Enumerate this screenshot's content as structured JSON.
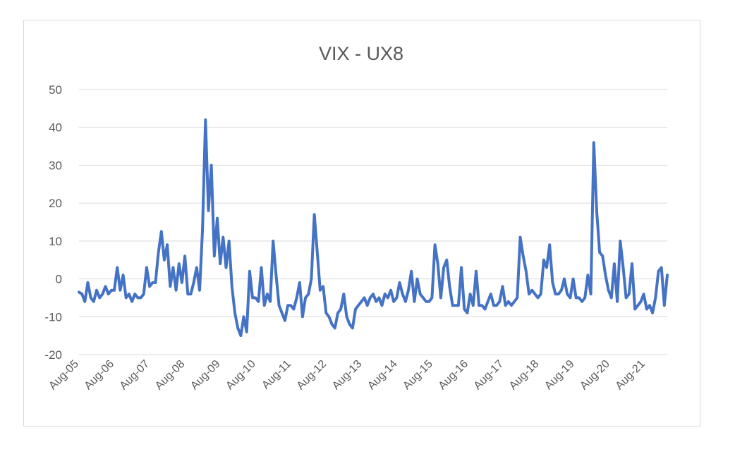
{
  "chart_data": {
    "type": "line",
    "title": "VIX - UX8",
    "xlabel": "",
    "ylabel": "",
    "ylim": [
      -20,
      50
    ],
    "yticks": [
      -20,
      -10,
      0,
      10,
      20,
      30,
      40,
      50
    ],
    "grid": true,
    "legend": "none",
    "line_color": "#4472c4",
    "x_tick_labels": [
      "Aug-05",
      "Aug-06",
      "Aug-07",
      "Aug-08",
      "Aug-09",
      "Aug-10",
      "Aug-11",
      "Aug-12",
      "Aug-13",
      "Aug-14",
      "Aug-15",
      "Aug-16",
      "Aug-17",
      "Aug-18",
      "Aug-19",
      "Aug-20",
      "Aug-21"
    ],
    "x_start": "2005-08",
    "x_end": "2022-04",
    "series": [
      {
        "points": [
          [
            "2005-08",
            -3.5
          ],
          [
            "2005-09",
            -4
          ],
          [
            "2005-10",
            -6
          ],
          [
            "2005-11",
            -1
          ],
          [
            "2005-12",
            -5
          ],
          [
            "2006-01",
            -6
          ],
          [
            "2006-02",
            -3
          ],
          [
            "2006-03",
            -5
          ],
          [
            "2006-04",
            -4
          ],
          [
            "2006-05",
            -2
          ],
          [
            "2006-06",
            -4
          ],
          [
            "2006-07",
            -3
          ],
          [
            "2006-08",
            -3
          ],
          [
            "2006-09",
            3
          ],
          [
            "2006-10",
            -3
          ],
          [
            "2006-11",
            1
          ],
          [
            "2006-12",
            -5
          ],
          [
            "2007-01",
            -4
          ],
          [
            "2007-02",
            -6
          ],
          [
            "2007-03",
            -4
          ],
          [
            "2007-04",
            -5
          ],
          [
            "2007-05",
            -5
          ],
          [
            "2007-06",
            -4
          ],
          [
            "2007-07",
            3
          ],
          [
            "2007-08",
            -2
          ],
          [
            "2007-09",
            -1
          ],
          [
            "2007-10",
            -1
          ],
          [
            "2007-11",
            7
          ],
          [
            "2007-12",
            12.5
          ],
          [
            "2008-01",
            5
          ],
          [
            "2008-02",
            9
          ],
          [
            "2008-03",
            -2
          ],
          [
            "2008-04",
            3
          ],
          [
            "2008-05",
            -3
          ],
          [
            "2008-06",
            4
          ],
          [
            "2008-07",
            -1
          ],
          [
            "2008-08",
            6
          ],
          [
            "2008-09",
            -4
          ],
          [
            "2008-10",
            -4
          ],
          [
            "2008-11",
            -1
          ],
          [
            "2008-12",
            3
          ],
          [
            "2009-01",
            -3
          ],
          [
            "2009-02",
            13
          ],
          [
            "2009-03",
            42
          ],
          [
            "2009-04",
            18
          ],
          [
            "2009-05",
            30
          ],
          [
            "2009-06",
            6
          ],
          [
            "2009-07",
            16
          ],
          [
            "2009-08",
            4
          ],
          [
            "2009-09",
            11
          ],
          [
            "2009-10",
            3
          ],
          [
            "2009-11",
            10
          ],
          [
            "2009-12",
            -2
          ],
          [
            "2010-01",
            -9
          ],
          [
            "2010-02",
            -13
          ],
          [
            "2010-03",
            -15
          ],
          [
            "2010-04",
            -10
          ],
          [
            "2010-05",
            -14
          ],
          [
            "2010-06",
            2
          ],
          [
            "2010-07",
            -5
          ],
          [
            "2010-08",
            -5
          ],
          [
            "2010-09",
            -6
          ],
          [
            "2010-10",
            3
          ],
          [
            "2010-11",
            -7
          ],
          [
            "2010-12",
            -4
          ],
          [
            "2011-01",
            -6
          ],
          [
            "2011-02",
            10
          ],
          [
            "2011-03",
            1
          ],
          [
            "2011-04",
            -7
          ],
          [
            "2011-05",
            -9
          ],
          [
            "2011-06",
            -11
          ],
          [
            "2011-07",
            -7
          ],
          [
            "2011-08",
            -7
          ],
          [
            "2011-09",
            -8
          ],
          [
            "2011-10",
            -5
          ],
          [
            "2011-11",
            -1
          ],
          [
            "2011-12",
            -10
          ],
          [
            "2012-01",
            -5
          ],
          [
            "2012-02",
            -4
          ],
          [
            "2012-03",
            0
          ],
          [
            "2012-04",
            17
          ],
          [
            "2012-05",
            7
          ],
          [
            "2012-06",
            -3
          ],
          [
            "2012-07",
            -2
          ],
          [
            "2012-08",
            -9
          ],
          [
            "2012-09",
            -10
          ],
          [
            "2012-10",
            -12
          ],
          [
            "2012-11",
            -13
          ],
          [
            "2012-12",
            -9
          ],
          [
            "2013-01",
            -8
          ],
          [
            "2013-02",
            -4
          ],
          [
            "2013-03",
            -10
          ],
          [
            "2013-04",
            -12
          ],
          [
            "2013-05",
            -13
          ],
          [
            "2013-06",
            -8
          ],
          [
            "2013-07",
            -7
          ],
          [
            "2013-08",
            -6
          ],
          [
            "2013-09",
            -5
          ],
          [
            "2013-10",
            -7
          ],
          [
            "2013-11",
            -5
          ],
          [
            "2013-12",
            -4
          ],
          [
            "2014-01",
            -6
          ],
          [
            "2014-02",
            -5
          ],
          [
            "2014-03",
            -7
          ],
          [
            "2014-04",
            -4
          ],
          [
            "2014-05",
            -5
          ],
          [
            "2014-06",
            -3
          ],
          [
            "2014-07",
            -6
          ],
          [
            "2014-08",
            -5
          ],
          [
            "2014-09",
            -1
          ],
          [
            "2014-10",
            -4
          ],
          [
            "2014-11",
            -6
          ],
          [
            "2014-12",
            -3
          ],
          [
            "2015-01",
            2
          ],
          [
            "2015-02",
            -6
          ],
          [
            "2015-03",
            0
          ],
          [
            "2015-04",
            -4
          ],
          [
            "2015-05",
            -5
          ],
          [
            "2015-06",
            -6
          ],
          [
            "2015-07",
            -6
          ],
          [
            "2015-08",
            -5
          ],
          [
            "2015-09",
            9
          ],
          [
            "2015-10",
            4
          ],
          [
            "2015-11",
            -5
          ],
          [
            "2015-12",
            3
          ],
          [
            "2016-01",
            5
          ],
          [
            "2016-02",
            -2
          ],
          [
            "2016-03",
            -7
          ],
          [
            "2016-04",
            -7
          ],
          [
            "2016-05",
            -7
          ],
          [
            "2016-06",
            3
          ],
          [
            "2016-07",
            -8
          ],
          [
            "2016-08",
            -9
          ],
          [
            "2016-09",
            -4
          ],
          [
            "2016-10",
            -7
          ],
          [
            "2016-11",
            2
          ],
          [
            "2016-12",
            -7
          ],
          [
            "2017-01",
            -7
          ],
          [
            "2017-02",
            -8
          ],
          [
            "2017-03",
            -6
          ],
          [
            "2017-04",
            -4
          ],
          [
            "2017-05",
            -7
          ],
          [
            "2017-06",
            -7
          ],
          [
            "2017-07",
            -6
          ],
          [
            "2017-08",
            -2
          ],
          [
            "2017-09",
            -7
          ],
          [
            "2017-10",
            -6
          ],
          [
            "2017-11",
            -7
          ],
          [
            "2017-12",
            -6
          ],
          [
            "2018-01",
            -5
          ],
          [
            "2018-02",
            11
          ],
          [
            "2018-03",
            6
          ],
          [
            "2018-04",
            2
          ],
          [
            "2018-05",
            -4
          ],
          [
            "2018-06",
            -3
          ],
          [
            "2018-07",
            -4
          ],
          [
            "2018-08",
            -5
          ],
          [
            "2018-09",
            -4
          ],
          [
            "2018-10",
            5
          ],
          [
            "2018-11",
            3
          ],
          [
            "2018-12",
            9
          ],
          [
            "2019-01",
            -1
          ],
          [
            "2019-02",
            -4
          ],
          [
            "2019-03",
            -4
          ],
          [
            "2019-04",
            -3
          ],
          [
            "2019-05",
            0
          ],
          [
            "2019-06",
            -4
          ],
          [
            "2019-07",
            -5
          ],
          [
            "2019-08",
            0
          ],
          [
            "2019-09",
            -5
          ],
          [
            "2019-10",
            -5
          ],
          [
            "2019-11",
            -6
          ],
          [
            "2019-12",
            -5
          ],
          [
            "2020-01",
            1
          ],
          [
            "2020-02",
            -4
          ],
          [
            "2020-03",
            36
          ],
          [
            "2020-04",
            18
          ],
          [
            "2020-05",
            7
          ],
          [
            "2020-06",
            6
          ],
          [
            "2020-07",
            1
          ],
          [
            "2020-08",
            -3
          ],
          [
            "2020-09",
            -5
          ],
          [
            "2020-10",
            4
          ],
          [
            "2020-11",
            -6
          ],
          [
            "2020-12",
            10
          ],
          [
            "2021-01",
            3
          ],
          [
            "2021-02",
            -5
          ],
          [
            "2021-03",
            -4
          ],
          [
            "2021-04",
            4
          ],
          [
            "2021-05",
            -8
          ],
          [
            "2021-06",
            -7
          ],
          [
            "2021-07",
            -6
          ],
          [
            "2021-08",
            -4
          ],
          [
            "2021-09",
            -8
          ],
          [
            "2021-10",
            -7
          ],
          [
            "2021-11",
            -9
          ],
          [
            "2021-12",
            -5
          ],
          [
            "2022-01",
            2
          ],
          [
            "2022-02",
            3
          ],
          [
            "2022-03",
            -7
          ],
          [
            "2022-04",
            1
          ]
        ]
      }
    ]
  }
}
